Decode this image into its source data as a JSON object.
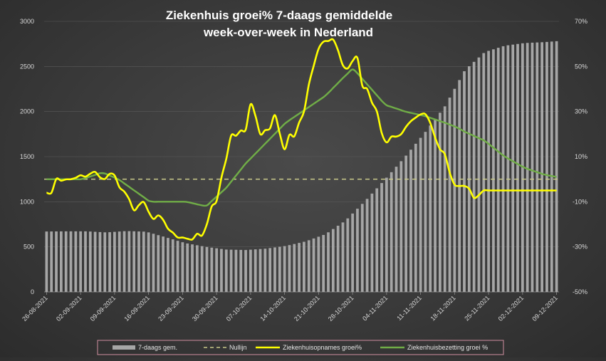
{
  "chart_data": {
    "type": "bar",
    "title_lines": [
      "Ziekenhuis groei% 7-daags gemiddelde",
      "week-over-week in Nederland"
    ],
    "y_left": {
      "min": 0,
      "max": 3000,
      "ticks": [
        "0",
        "500",
        "1000",
        "1500",
        "2000",
        "2500",
        "3000"
      ]
    },
    "y_right": {
      "min": -50,
      "max": 70,
      "ticks": [
        "-50%",
        "-30%",
        "-10%",
        "10%",
        "30%",
        "50%",
        "70%"
      ]
    },
    "x_tick_labels": [
      "26-08-2021",
      "02-09-2021",
      "09-09-2021",
      "16-09-2021",
      "23-09-2021",
      "30-09-2021",
      "07-10-2021",
      "14-10-2021",
      "21-10-2021",
      "28-10-2021",
      "04-11-2021",
      "11-11-2021",
      "18-11-2021",
      "25-11-2021",
      "02-12-2021",
      "09-12-2021"
    ],
    "x_count": 106,
    "legend": [
      "7-daags gem.",
      "Nullijn",
      "Ziekenhuisopnames groei%",
      "Ziekenhuisbezetting groei %"
    ],
    "colors": {
      "bars": "#a6a6a6",
      "nullijn": "#c9c98a",
      "opnames": "#ffff00",
      "bezetting": "#70ad47"
    },
    "nullijn_value": 0,
    "bezetting_anchors": [
      [
        0,
        0
      ],
      [
        5,
        0
      ],
      [
        9,
        0
      ],
      [
        14,
        3
      ],
      [
        18,
        0
      ],
      [
        22,
        -5
      ],
      [
        26,
        -10
      ],
      [
        30,
        -10
      ],
      [
        35,
        -10
      ],
      [
        40,
        -12
      ],
      [
        45,
        -4
      ],
      [
        50,
        7
      ],
      [
        55,
        16
      ],
      [
        60,
        25
      ],
      [
        65,
        31
      ],
      [
        70,
        37
      ],
      [
        75,
        46
      ],
      [
        77,
        49
      ],
      [
        80,
        43
      ],
      [
        85,
        33
      ],
      [
        90,
        30
      ],
      [
        95,
        28
      ],
      [
        100,
        25
      ],
      [
        103,
        23
      ],
      [
        105,
        21
      ],
      [
        110,
        17
      ],
      [
        115,
        10
      ],
      [
        120,
        5
      ],
      [
        125,
        2
      ],
      [
        128,
        1
      ]
    ],
    "opnames_anchors": [
      [
        0,
        -6
      ],
      [
        1,
        -8
      ],
      [
        2,
        1
      ],
      [
        3,
        -1
      ],
      [
        5,
        0
      ],
      [
        7,
        0
      ],
      [
        8,
        2
      ],
      [
        10,
        1
      ],
      [
        12,
        4
      ],
      [
        13,
        0
      ],
      [
        14,
        2
      ],
      [
        15,
        -1
      ],
      [
        16,
        3
      ],
      [
        17,
        2
      ],
      [
        18,
        -3
      ],
      [
        19,
        -5
      ],
      [
        20,
        -6
      ],
      [
        21,
        -10
      ],
      [
        22,
        -14
      ],
      [
        23,
        -12
      ],
      [
        24,
        -9
      ],
      [
        25,
        -12
      ],
      [
        26,
        -16
      ],
      [
        27,
        -18
      ],
      [
        28,
        -16
      ],
      [
        29,
        -17
      ],
      [
        30,
        -21
      ],
      [
        31,
        -23
      ],
      [
        32,
        -24
      ],
      [
        33,
        -26
      ],
      [
        34,
        -26
      ],
      [
        35,
        -25
      ],
      [
        36,
        -29
      ],
      [
        37,
        -25
      ],
      [
        38,
        -24
      ],
      [
        39,
        -25
      ],
      [
        40,
        -22
      ],
      [
        41,
        -13
      ],
      [
        42,
        -11
      ],
      [
        43,
        -9
      ],
      [
        44,
        2
      ],
      [
        45,
        8
      ],
      [
        46,
        18
      ],
      [
        47,
        22
      ],
      [
        48,
        17
      ],
      [
        49,
        23
      ],
      [
        50,
        22
      ],
      [
        51,
        33
      ],
      [
        52,
        34
      ],
      [
        53,
        20
      ],
      [
        54,
        20
      ],
      [
        55,
        22
      ],
      [
        56,
        22
      ],
      [
        57,
        29
      ],
      [
        58,
        27
      ],
      [
        59,
        14
      ],
      [
        60,
        13
      ],
      [
        61,
        20
      ],
      [
        62,
        18
      ],
      [
        63,
        24
      ],
      [
        64,
        27
      ],
      [
        65,
        32
      ],
      [
        66,
        44
      ],
      [
        67,
        50
      ],
      [
        68,
        57
      ],
      [
        69,
        60
      ],
      [
        70,
        62
      ],
      [
        71,
        61
      ],
      [
        72,
        62
      ],
      [
        73,
        58
      ],
      [
        74,
        52
      ],
      [
        75,
        48
      ],
      [
        76,
        50
      ],
      [
        77,
        53
      ],
      [
        78,
        54
      ],
      [
        79,
        42
      ],
      [
        80,
        40
      ],
      [
        81,
        40
      ],
      [
        82,
        31
      ],
      [
        83,
        30
      ],
      [
        84,
        21
      ],
      [
        85,
        17
      ],
      [
        86,
        15
      ],
      [
        87,
        22
      ],
      [
        88,
        18
      ],
      [
        89,
        20
      ],
      [
        90,
        23
      ],
      [
        91,
        24
      ],
      [
        92,
        28
      ],
      [
        93,
        27
      ],
      [
        94,
        29
      ],
      [
        95,
        29
      ],
      [
        96,
        27
      ],
      [
        97,
        20
      ],
      [
        98,
        17
      ],
      [
        99,
        12
      ],
      [
        100,
        11
      ],
      [
        101,
        4
      ],
      [
        102,
        -2
      ],
      [
        103,
        -3
      ],
      [
        104,
        -3
      ],
      [
        105,
        -3
      ],
      [
        106,
        -4
      ],
      [
        107,
        -8
      ],
      [
        108,
        -9
      ],
      [
        109,
        -5
      ],
      [
        110,
        -5
      ]
    ],
    "bars_anchors": [
      [
        0,
        670
      ],
      [
        5,
        672
      ],
      [
        10,
        672
      ],
      [
        15,
        660
      ],
      [
        20,
        675
      ],
      [
        25,
        668
      ],
      [
        30,
        605
      ],
      [
        35,
        540
      ],
      [
        40,
        500
      ],
      [
        45,
        470
      ],
      [
        50,
        465
      ],
      [
        55,
        480
      ],
      [
        60,
        510
      ],
      [
        65,
        560
      ],
      [
        70,
        640
      ],
      [
        75,
        790
      ],
      [
        80,
        1010
      ],
      [
        85,
        1250
      ],
      [
        90,
        1500
      ],
      [
        95,
        1770
      ],
      [
        100,
        2060
      ],
      [
        105,
        2460
      ],
      [
        110,
        2660
      ],
      [
        115,
        2730
      ],
      [
        120,
        2760
      ],
      [
        125,
        2770
      ],
      [
        128,
        2780
      ]
    ],
    "anchor_span": 128
  }
}
